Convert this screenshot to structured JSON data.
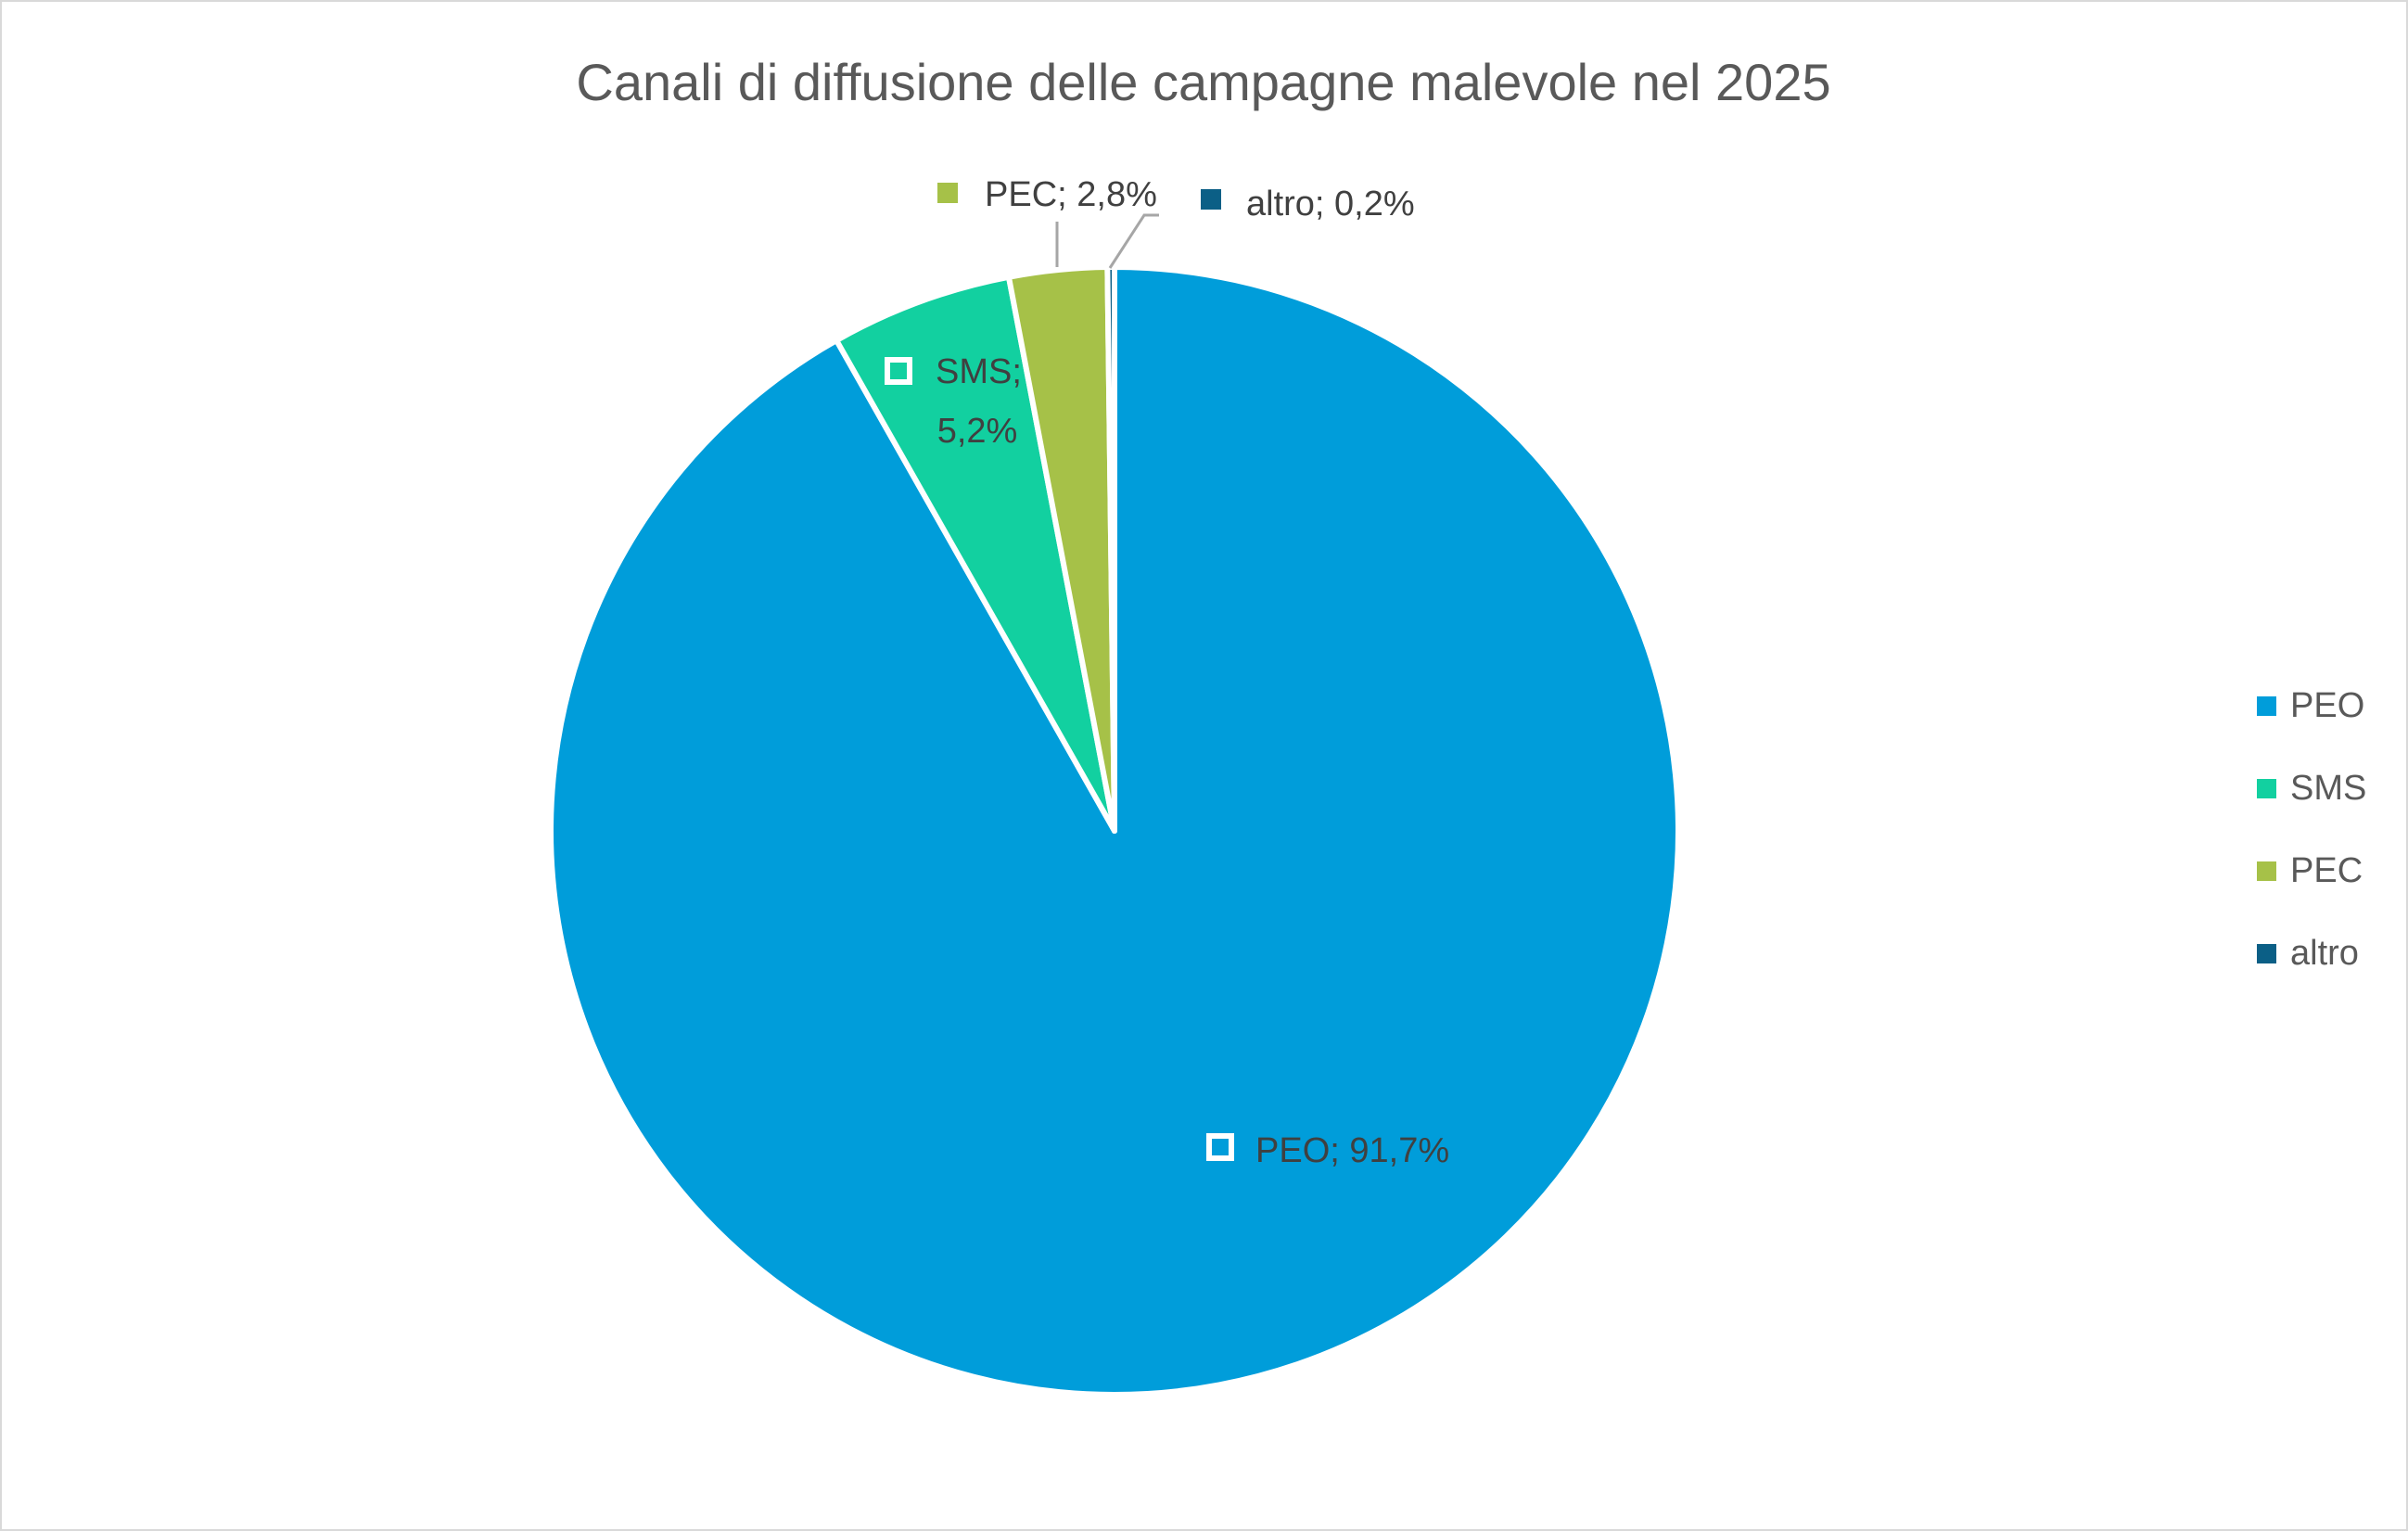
{
  "chart_data": {
    "type": "pie",
    "title": "Canali di diffusione delle campagne malevole nel 2025",
    "categories": [
      "PEO",
      "SMS",
      "PEC",
      "altro"
    ],
    "values": [
      91.7,
      5.2,
      2.8,
      0.2
    ],
    "unit": "%",
    "colors": [
      "#009DDA",
      "#12D0A0",
      "#A6C148",
      "#0B5F86"
    ],
    "data_labels": [
      {
        "category": "PEO",
        "text": "PEO; 91,7%"
      },
      {
        "category": "SMS",
        "line1": "SMS;",
        "line2": "5,2%"
      },
      {
        "category": "PEC",
        "text": "PEC; 2,8%"
      },
      {
        "category": "altro",
        "text": "altro; 0,2%"
      }
    ],
    "legend_position": "right",
    "legend": [
      "PEO",
      "SMS",
      "PEC",
      "altro"
    ]
  }
}
